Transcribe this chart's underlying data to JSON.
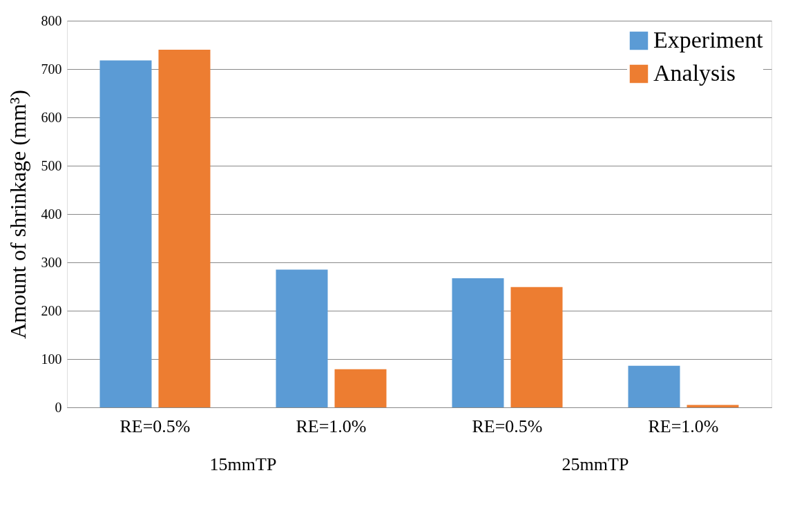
{
  "chart_data": {
    "type": "bar",
    "ylabel": "Amount of shrinkage (mm³)",
    "categories": [
      "RE=0.5%",
      "RE=1.0%",
      "RE=0.5%",
      "RE=1.0%"
    ],
    "series": [
      {
        "name": "Experiment",
        "color": "#5b9bd5",
        "values": [
          718,
          285,
          267,
          86
        ]
      },
      {
        "name": "Analysis",
        "color": "#ed7d31",
        "values": [
          740,
          79,
          249,
          5
        ]
      }
    ],
    "annotations": [
      "15mmTP",
      "25mmTP"
    ],
    "ylim": [
      0,
      800
    ],
    "yticks": [
      0,
      100,
      200,
      300,
      400,
      500,
      600,
      700,
      800
    ],
    "grid": "y",
    "legend": "top right"
  }
}
